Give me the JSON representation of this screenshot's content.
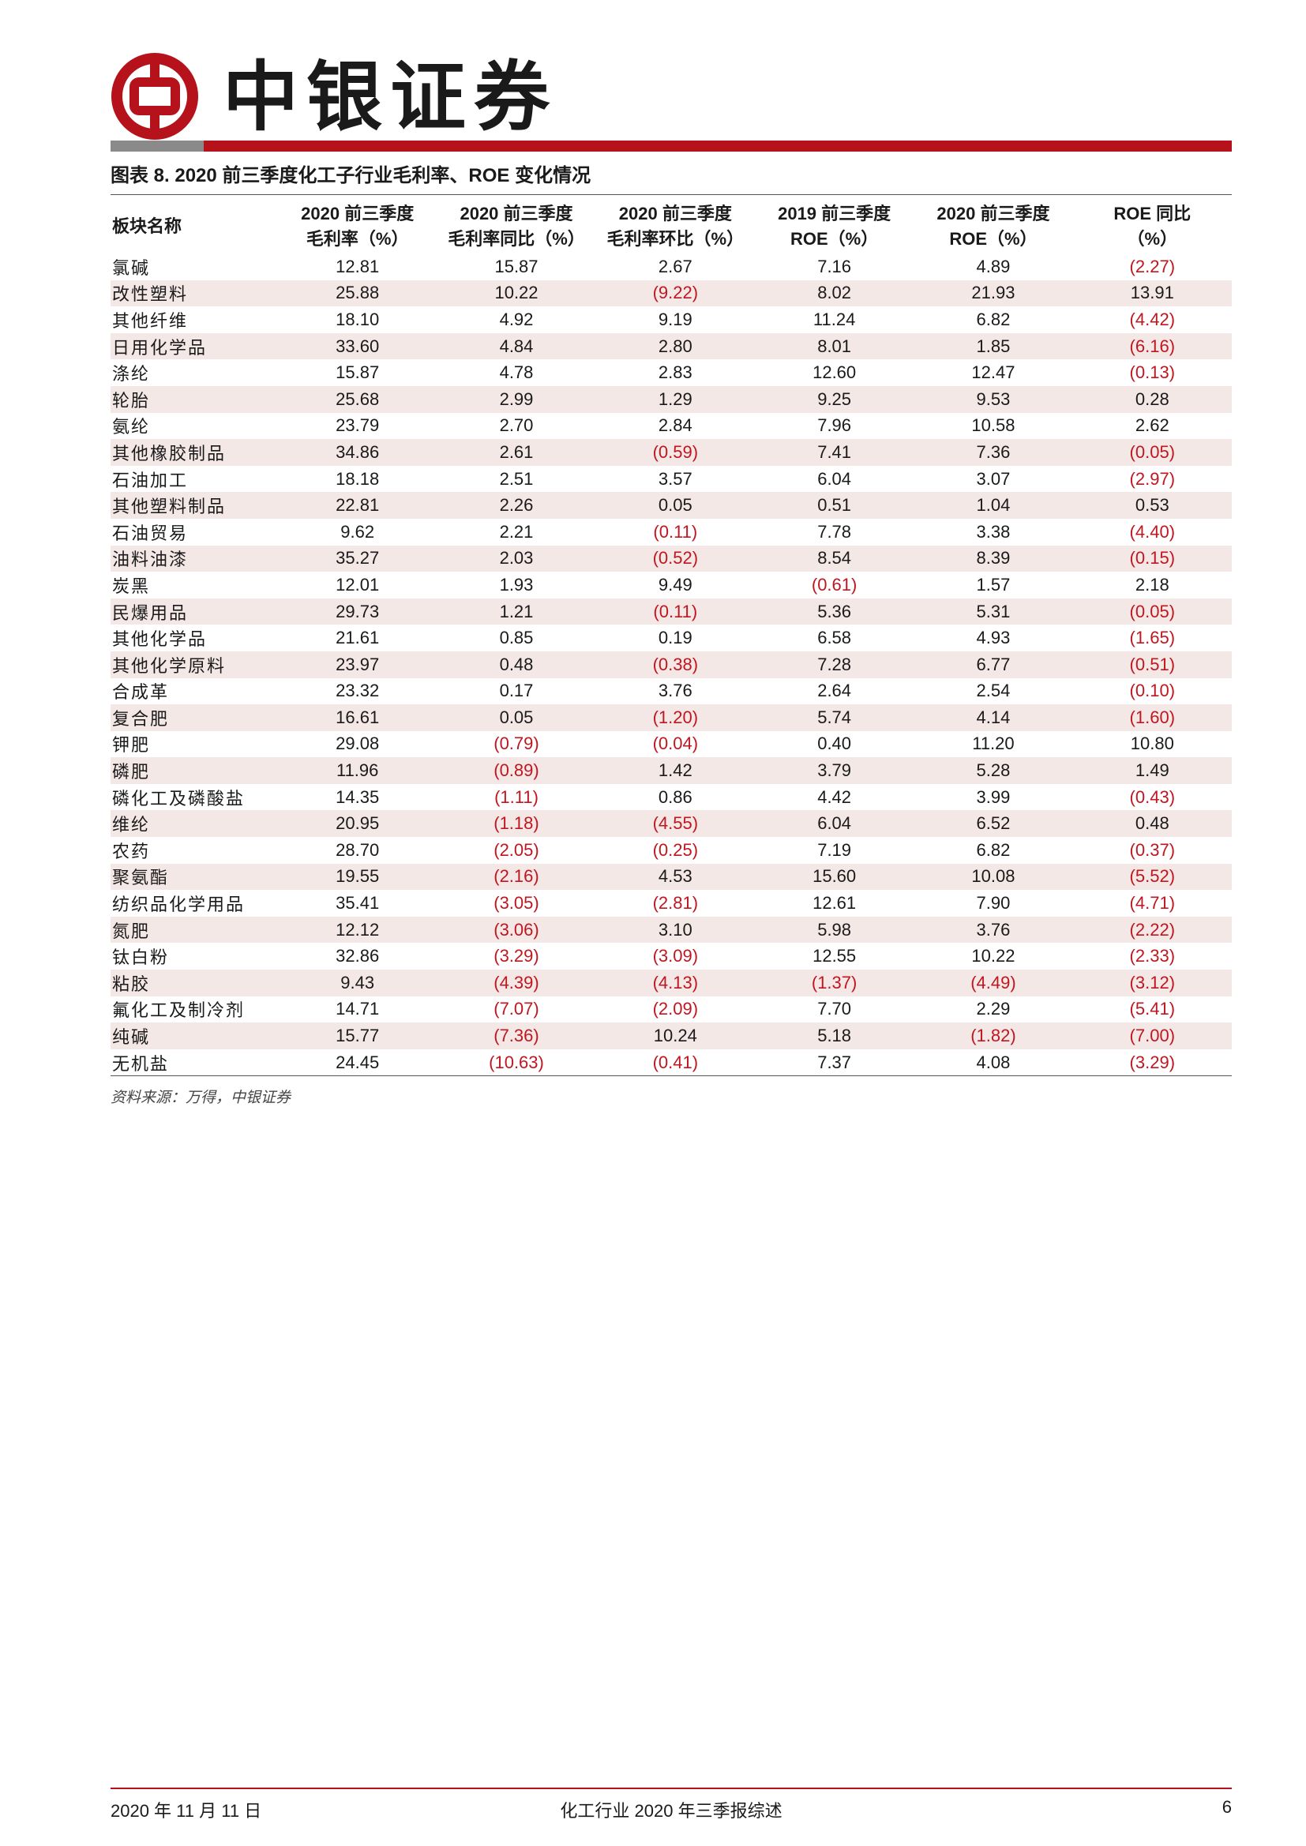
{
  "header": {
    "brand": "中银证券",
    "colors": {
      "brand_red": "#b5121b",
      "negative_red": "#c0161f",
      "band": "#f4e8e6"
    }
  },
  "caption": "图表 8. 2020 前三季度化工子行业毛利率、ROE 变化情况",
  "table": {
    "headers": [
      [
        "板块名称",
        ""
      ],
      [
        "2020 前三季度",
        "毛利率（%）"
      ],
      [
        "2020 前三季度",
        "毛利率同比（%）"
      ],
      [
        "2020 前三季度",
        "毛利率环比（%）"
      ],
      [
        "2019 前三季度",
        "ROE（%）"
      ],
      [
        "2020 前三季度",
        "ROE（%）"
      ],
      [
        "ROE 同比",
        "（%）"
      ]
    ],
    "rows": [
      [
        "氯碱",
        "12.81",
        "15.87",
        "2.67",
        "7.16",
        "4.89",
        "(2.27)"
      ],
      [
        "改性塑料",
        "25.88",
        "10.22",
        "(9.22)",
        "8.02",
        "21.93",
        "13.91"
      ],
      [
        "其他纤维",
        "18.10",
        "4.92",
        "9.19",
        "11.24",
        "6.82",
        "(4.42)"
      ],
      [
        "日用化学品",
        "33.60",
        "4.84",
        "2.80",
        "8.01",
        "1.85",
        "(6.16)"
      ],
      [
        "涤纶",
        "15.87",
        "4.78",
        "2.83",
        "12.60",
        "12.47",
        "(0.13)"
      ],
      [
        "轮胎",
        "25.68",
        "2.99",
        "1.29",
        "9.25",
        "9.53",
        "0.28"
      ],
      [
        "氨纶",
        "23.79",
        "2.70",
        "2.84",
        "7.96",
        "10.58",
        "2.62"
      ],
      [
        "其他橡胶制品",
        "34.86",
        "2.61",
        "(0.59)",
        "7.41",
        "7.36",
        "(0.05)"
      ],
      [
        "石油加工",
        "18.18",
        "2.51",
        "3.57",
        "6.04",
        "3.07",
        "(2.97)"
      ],
      [
        "其他塑料制品",
        "22.81",
        "2.26",
        "0.05",
        "0.51",
        "1.04",
        "0.53"
      ],
      [
        "石油贸易",
        "9.62",
        "2.21",
        "(0.11)",
        "7.78",
        "3.38",
        "(4.40)"
      ],
      [
        "油料油漆",
        "35.27",
        "2.03",
        "(0.52)",
        "8.54",
        "8.39",
        "(0.15)"
      ],
      [
        "炭黑",
        "12.01",
        "1.93",
        "9.49",
        "(0.61)",
        "1.57",
        "2.18"
      ],
      [
        "民爆用品",
        "29.73",
        "1.21",
        "(0.11)",
        "5.36",
        "5.31",
        "(0.05)"
      ],
      [
        "其他化学品",
        "21.61",
        "0.85",
        "0.19",
        "6.58",
        "4.93",
        "(1.65)"
      ],
      [
        "其他化学原料",
        "23.97",
        "0.48",
        "(0.38)",
        "7.28",
        "6.77",
        "(0.51)"
      ],
      [
        "合成革",
        "23.32",
        "0.17",
        "3.76",
        "2.64",
        "2.54",
        "(0.10)"
      ],
      [
        "复合肥",
        "16.61",
        "0.05",
        "(1.20)",
        "5.74",
        "4.14",
        "(1.60)"
      ],
      [
        "钾肥",
        "29.08",
        "(0.79)",
        "(0.04)",
        "0.40",
        "11.20",
        "10.80"
      ],
      [
        "磷肥",
        "11.96",
        "(0.89)",
        "1.42",
        "3.79",
        "5.28",
        "1.49"
      ],
      [
        "磷化工及磷酸盐",
        "14.35",
        "(1.11)",
        "0.86",
        "4.42",
        "3.99",
        "(0.43)"
      ],
      [
        "维纶",
        "20.95",
        "(1.18)",
        "(4.55)",
        "6.04",
        "6.52",
        "0.48"
      ],
      [
        "农药",
        "28.70",
        "(2.05)",
        "(0.25)",
        "7.19",
        "6.82",
        "(0.37)"
      ],
      [
        "聚氨酯",
        "19.55",
        "(2.16)",
        "4.53",
        "15.60",
        "10.08",
        "(5.52)"
      ],
      [
        "纺织品化学用品",
        "35.41",
        "(3.05)",
        "(2.81)",
        "12.61",
        "7.90",
        "(4.71)"
      ],
      [
        "氮肥",
        "12.12",
        "(3.06)",
        "3.10",
        "5.98",
        "3.76",
        "(2.22)"
      ],
      [
        "钛白粉",
        "32.86",
        "(3.29)",
        "(3.09)",
        "12.55",
        "10.22",
        "(2.33)"
      ],
      [
        "粘胶",
        "9.43",
        "(4.39)",
        "(4.13)",
        "(1.37)",
        "(4.49)",
        "(3.12)"
      ],
      [
        "氟化工及制冷剂",
        "14.71",
        "(7.07)",
        "(2.09)",
        "7.70",
        "2.29",
        "(5.41)"
      ],
      [
        "纯碱",
        "15.77",
        "(7.36)",
        "10.24",
        "5.18",
        "(1.82)",
        "(7.00)"
      ],
      [
        "无机盐",
        "24.45",
        "(10.63)",
        "(0.41)",
        "7.37",
        "4.08",
        "(3.29)"
      ]
    ]
  },
  "source": "资料来源：万得，中银证券",
  "footer": {
    "date": "2020 年 11 月 11 日",
    "title": "化工行业 2020 年三季报综述",
    "page": "6"
  }
}
